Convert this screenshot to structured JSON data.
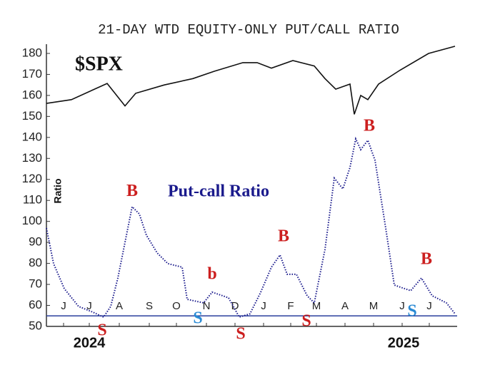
{
  "chart_data": {
    "type": "line",
    "title": "21-DAY WTD EQUITY-ONLY PUT/CALL RATIO",
    "y_label": "Ratio",
    "labels": {
      "spx": "$SPX",
      "ratio": "Put-call Ratio"
    },
    "xlim": [
      0,
      14.375
    ],
    "ylim": [
      50,
      184.4
    ],
    "yticks": [
      50,
      60,
      70,
      80,
      90,
      100,
      110,
      120,
      130,
      140,
      150,
      160,
      170,
      180
    ],
    "xticks": [
      {
        "value": 0.6,
        "label": "J"
      },
      {
        "value": 1.5,
        "label": "J"
      },
      {
        "value": 2.55,
        "label": "A"
      },
      {
        "value": 3.6,
        "label": "S"
      },
      {
        "value": 4.55,
        "label": "O"
      },
      {
        "value": 5.6,
        "label": "N"
      },
      {
        "value": 6.6,
        "label": "D"
      },
      {
        "value": 7.6,
        "label": "J"
      },
      {
        "value": 8.55,
        "label": "F"
      },
      {
        "value": 9.45,
        "label": "M"
      },
      {
        "value": 10.45,
        "label": "A"
      },
      {
        "value": 11.45,
        "label": "M"
      },
      {
        "value": 12.45,
        "label": "J"
      },
      {
        "value": 13.4,
        "label": "J"
      }
    ],
    "years": [
      {
        "value": 1.5,
        "label": "2024"
      },
      {
        "value": 12.5,
        "label": "2025"
      }
    ],
    "hline": 55,
    "series": [
      {
        "name": "$SPX",
        "color": "#111111",
        "style": "solid",
        "x": [
          0,
          0.875,
          2.125,
          2.75,
          3.125,
          4.125,
          5.125,
          5.875,
          6.875,
          7.375,
          7.875,
          8.625,
          9.375,
          9.75,
          10.125,
          10.625,
          10.775,
          11.0,
          11.25,
          11.625,
          12.375,
          13.375,
          14.3
        ],
        "values": [
          156.2,
          158,
          165.7,
          155,
          161,
          165,
          168,
          171.5,
          175.6,
          175.6,
          173,
          176.6,
          174,
          168,
          163,
          165.4,
          151,
          160,
          158,
          165.4,
          172,
          180,
          183.4
        ]
      },
      {
        "name": "Put-call Ratio",
        "color": "#1a1a8c",
        "style": "dotted",
        "x": [
          0,
          0.25,
          0.625,
          1.125,
          1.625,
          2.0,
          2.25,
          2.5,
          2.75,
          3.0,
          3.25,
          3.5,
          3.875,
          4.25,
          4.75,
          4.925,
          5.5,
          5.8,
          6.375,
          6.75,
          7.125,
          7.5,
          7.875,
          8.175,
          8.425,
          8.75,
          9.125,
          9.375,
          9.75,
          10.075,
          10.375,
          10.625,
          10.825,
          11.0,
          11.25,
          11.5,
          11.875,
          12.175,
          12.75,
          13.125,
          13.5,
          14.0,
          14.3
        ],
        "values": [
          96.8,
          79.9,
          68,
          59.5,
          56.8,
          54.4,
          59.5,
          73,
          90,
          107,
          103.6,
          93.4,
          85,
          79.9,
          78.2,
          62.9,
          61.2,
          66.3,
          63.6,
          54.4,
          56,
          66.3,
          78.2,
          84,
          74.8,
          74.8,
          64.6,
          61.2,
          86.7,
          120.6,
          115.5,
          125.7,
          139.3,
          134.2,
          138.6,
          129.1,
          96.8,
          69.7,
          67,
          73,
          64.6,
          61.2,
          56
        ]
      }
    ],
    "annotations": [
      {
        "text": "B",
        "color": "#cc1f1f",
        "x": 3.0,
        "y": 114
      },
      {
        "text": "S",
        "color": "#cc1f1f",
        "x": 1.95,
        "y": 47.6
      },
      {
        "text": "S",
        "color": "#2a8ad4",
        "x": 5.3,
        "y": 53.4
      },
      {
        "text": "b",
        "color": "#cc1f1f",
        "x": 5.8,
        "y": 74.4
      },
      {
        "text": "S",
        "color": "#cc1f1f",
        "x": 6.8,
        "y": 46
      },
      {
        "text": "B",
        "color": "#cc1f1f",
        "x": 8.3,
        "y": 92.4
      },
      {
        "text": "S",
        "color": "#cc1f1f",
        "x": 9.1,
        "y": 52
      },
      {
        "text": "B",
        "color": "#cc1f1f",
        "x": 11.3,
        "y": 145
      },
      {
        "text": "S",
        "color": "#2a8ad4",
        "x": 12.8,
        "y": 56.8
      },
      {
        "text": "B",
        "color": "#cc1f1f",
        "x": 13.3,
        "y": 81.6
      }
    ]
  }
}
